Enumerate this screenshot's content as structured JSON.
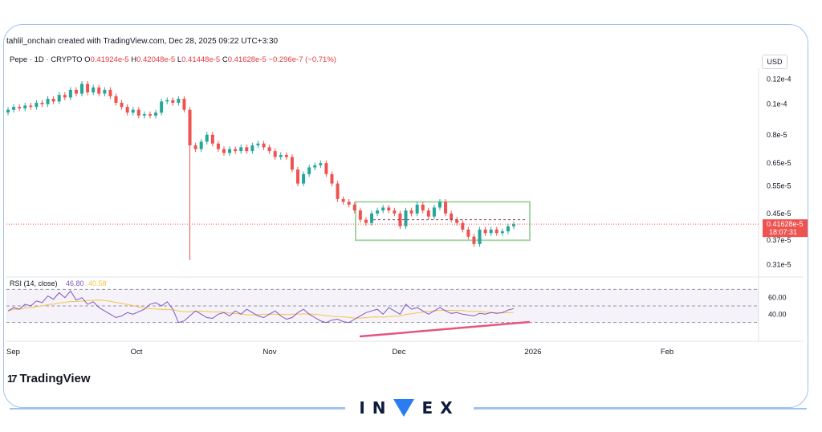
{
  "header": {
    "attribution": "tahlil_onchain created with TradingView.com, Dec 28, 2025 09:22 UTC+3:30",
    "symbol_line": "Pepe · 1D · CRYPTO",
    "ohlc": {
      "O": "0.41924e-5",
      "H": "0.42048e-5",
      "L": "0.41448e-5",
      "C": "0.41628e-5",
      "change": "−0.296e-7 (−0.71%)"
    },
    "currency": "USD"
  },
  "price_axis": {
    "ticks": [
      "0.12e-4",
      "0.1e-4",
      "0.8e-5",
      "0.65e-5",
      "0.55e-5",
      "0.45e-5",
      "0.37e-5",
      "0.31e-5"
    ],
    "last_price": "0.41628e-5",
    "countdown": "18:07:31"
  },
  "rsi": {
    "label": "RSI (14, close)",
    "value": "46.80",
    "ma_value": "40.58",
    "ticks": [
      "60.00",
      "40.00"
    ]
  },
  "time_axis": [
    "Sep",
    "Oct",
    "Nov",
    "Dec",
    "2026",
    "Feb"
  ],
  "watermark": {
    "logo_text": "TradingView",
    "brand_left": "IN",
    "brand_right": "EX"
  },
  "colors": {
    "up": "#26a69a",
    "down": "#ef5350",
    "rsi": "#7e57c2",
    "rsi_ma": "#f5c542",
    "box": "#a5d6a7",
    "trend": "#e75480"
  },
  "chart_data": {
    "type": "candlestick",
    "scale": "log",
    "ylim": [
      3e-06,
      1.3e-05
    ],
    "candles_close": [
      9.6e-06,
      9.8e-06,
      9.7e-06,
      9.9e-06,
      9.8e-06,
      1.01e-05,
      1e-05,
      1.04e-05,
      1.02e-05,
      1.07e-05,
      1.05e-05,
      1.11e-05,
      1.08e-05,
      1.16e-05,
      1.09e-05,
      1.13e-05,
      1.08e-05,
      1.11e-05,
      1.06e-05,
      1.01e-05,
      9.8e-06,
      9.4e-06,
      9.6e-06,
      9.2e-06,
      9.3e-06,
      9.2e-06,
      9.4e-06,
      1.02e-05,
      1.03e-05,
      1.01e-05,
      1.04e-05,
      9.6e-06,
      7.4e-06,
      7.2e-06,
      7.6e-06,
      8e-06,
      7.5e-06,
      7.2e-06,
      7e-06,
      7.2e-06,
      7.1e-06,
      7.3e-06,
      7.1e-06,
      7.4e-06,
      7.5e-06,
      7.3e-06,
      7.1e-06,
      6.8e-06,
      6.9e-06,
      6.8e-06,
      6.2e-06,
      5.6e-06,
      6e-06,
      6.3e-06,
      6.4e-06,
      6.5e-06,
      6e-06,
      5.6e-06,
      5e-06,
      4.9e-06,
      4.8e-06,
      4.6e-06,
      4.3e-06,
      4.2e-06,
      4.5e-06,
      4.6e-06,
      4.7e-06,
      4.6e-06,
      4.5e-06,
      4.1e-06,
      4.6e-06,
      4.5e-06,
      4.8e-06,
      4.6e-06,
      4.4e-06,
      4.7e-06,
      4.9e-06,
      4.5e-06,
      4.3e-06,
      4.2e-06,
      4e-06,
      3.8e-06,
      3.6e-06,
      4e-06,
      3.9e-06,
      4e-06,
      3.9e-06,
      3.95e-06,
      4.1e-06,
      4.16e-06
    ],
    "range_box": {
      "high": 4.9e-06,
      "low": 3.7e-06
    },
    "rsi_values": [
      44,
      48,
      46,
      52,
      50,
      56,
      54,
      62,
      58,
      66,
      60,
      68,
      57,
      60,
      52,
      55,
      48,
      44,
      40,
      36,
      38,
      42,
      40,
      43,
      46,
      52,
      54,
      50,
      55,
      46,
      30,
      32,
      38,
      44,
      40,
      36,
      35,
      40,
      42,
      38,
      44,
      40,
      46,
      42,
      38,
      36,
      40,
      44,
      38,
      34,
      36,
      42,
      46,
      40,
      36,
      32,
      30,
      33,
      34,
      31,
      30,
      34,
      38,
      42,
      44,
      46,
      40,
      48,
      44,
      40,
      52,
      46,
      48,
      44,
      40,
      44,
      48,
      44,
      41,
      42,
      40,
      39,
      38,
      41,
      40,
      42,
      41,
      42,
      45,
      46.8
    ],
    "rsi_ylim": [
      20,
      80
    ]
  }
}
